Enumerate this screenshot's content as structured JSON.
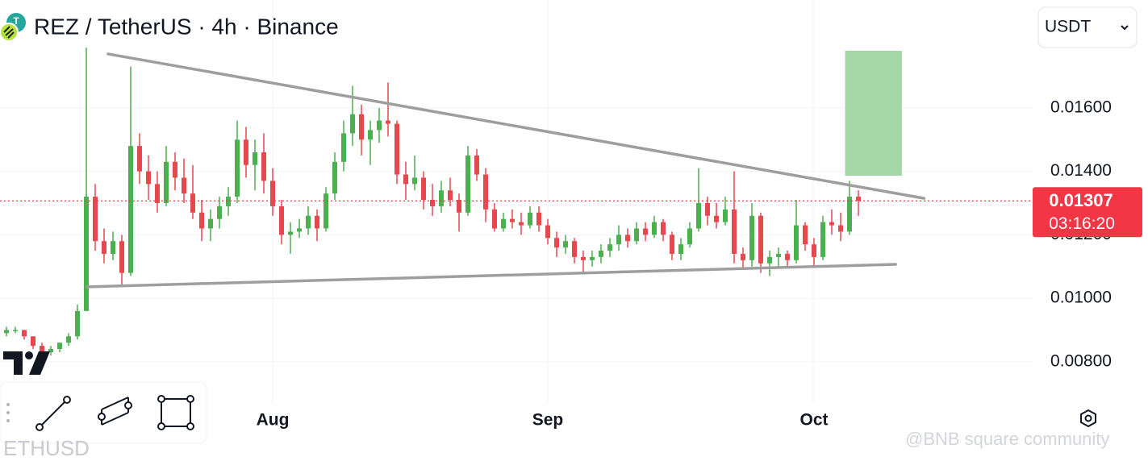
{
  "chart_data": {
    "type": "candlestick",
    "title": "REZ / TetherUS · 4h · Binance",
    "currency": "USDT",
    "overlay_symbol": "ETHUSD",
    "watermark": "@BNB square community",
    "categories": [
      null,
      null,
      null,
      null,
      null,
      null,
      null,
      null,
      null,
      null,
      null,
      null,
      null,
      null,
      null,
      null,
      null,
      null,
      null,
      null,
      null,
      null,
      null,
      null,
      null,
      null,
      null,
      null,
      null,
      null,
      "Aug",
      null,
      null,
      null,
      null,
      null,
      null,
      null,
      null,
      null,
      null,
      null,
      null,
      null,
      null,
      null,
      null,
      null,
      null,
      null,
      null,
      null,
      null,
      null,
      null,
      null,
      null,
      null,
      null,
      null,
      null,
      "Sep",
      null,
      null,
      null,
      null,
      null,
      null,
      null,
      null,
      null,
      null,
      null,
      null,
      null,
      null,
      null,
      null,
      null,
      null,
      null,
      null,
      null,
      null,
      null,
      null,
      null,
      null,
      null,
      null,
      null,
      "Oct",
      null,
      null,
      null,
      null,
      null
    ],
    "open": [
      0.0089,
      0.009,
      0.009,
      0.0088,
      0.0085,
      0.0083,
      0.0084,
      0.0086,
      0.0088,
      0.0096,
      0.0132,
      0.0118,
      0.0114,
      0.0118,
      0.0108,
      0.0148,
      0.014,
      0.0136,
      0.013,
      0.0143,
      0.0138,
      0.0133,
      0.0127,
      0.0122,
      0.0125,
      0.0129,
      0.0132,
      0.015,
      0.0142,
      0.0146,
      0.0137,
      0.0129,
      0.012,
      0.0121,
      0.0122,
      0.0126,
      0.0122,
      0.0133,
      0.0143,
      0.0152,
      0.0158,
      0.015,
      0.0153,
      0.0156,
      0.0155,
      0.0139,
      0.0136,
      0.0138,
      0.0131,
      0.0129,
      0.0134,
      0.0131,
      0.0127,
      0.0145,
      0.0139,
      0.0128,
      0.0122,
      0.0125,
      0.0124,
      0.0123,
      0.0127,
      0.0123,
      0.0119,
      0.0116,
      0.0118,
      0.0113,
      0.0112,
      0.0113,
      0.0115,
      0.0117,
      0.012,
      0.0118,
      0.0122,
      0.012,
      0.0124,
      0.012,
      0.0114,
      0.0117,
      0.0122,
      0.013,
      0.0126,
      0.0124,
      0.0128,
      0.0114,
      0.0112,
      0.0126,
      0.0111,
      0.0113,
      0.0114,
      0.0112,
      0.0123,
      0.0117,
      0.0113,
      0.0124,
      0.0123,
      0.0121,
      0.0132
    ],
    "high": [
      0.0091,
      0.0091,
      0.009,
      0.0088,
      0.0086,
      0.0085,
      0.0086,
      0.0089,
      0.0098,
      0.0179,
      0.0136,
      0.0122,
      0.0121,
      0.012,
      0.0173,
      0.0152,
      0.0145,
      0.014,
      0.0148,
      0.0146,
      0.0144,
      0.0142,
      0.0131,
      0.0128,
      0.0132,
      0.0135,
      0.0156,
      0.0154,
      0.015,
      0.0152,
      0.0141,
      0.0131,
      0.0124,
      0.0125,
      0.0129,
      0.0128,
      0.0135,
      0.0146,
      0.0156,
      0.0167,
      0.0161,
      0.0156,
      0.016,
      0.0168,
      0.0156,
      0.0143,
      0.0145,
      0.014,
      0.0136,
      0.0137,
      0.0138,
      0.0133,
      0.0148,
      0.0147,
      0.0141,
      0.013,
      0.0127,
      0.0128,
      0.0127,
      0.0129,
      0.0129,
      0.0125,
      0.0121,
      0.012,
      0.0119,
      0.0115,
      0.0115,
      0.0117,
      0.0119,
      0.0123,
      0.0122,
      0.0124,
      0.0124,
      0.0126,
      0.0125,
      0.0121,
      0.0119,
      0.0124,
      0.0141,
      0.0132,
      0.013,
      0.0132,
      0.014,
      0.0116,
      0.013,
      0.0127,
      0.0115,
      0.0116,
      0.0115,
      0.0131,
      0.0124,
      0.0119,
      0.0126,
      0.0128,
      0.0127,
      0.0137,
      0.0134
    ],
    "low": [
      0.0088,
      0.0089,
      0.0087,
      0.0084,
      0.0083,
      0.0082,
      0.0083,
      0.0085,
      0.0087,
      0.0096,
      0.0115,
      0.0111,
      0.0112,
      0.0104,
      0.0107,
      0.0136,
      0.0131,
      0.0127,
      0.0129,
      0.0134,
      0.013,
      0.0125,
      0.0118,
      0.0118,
      0.0122,
      0.0126,
      0.013,
      0.0138,
      0.0134,
      0.0133,
      0.0126,
      0.0117,
      0.0114,
      0.0119,
      0.012,
      0.0118,
      0.0121,
      0.0131,
      0.014,
      0.0148,
      0.0145,
      0.0142,
      0.0149,
      0.0151,
      0.0136,
      0.0131,
      0.0134,
      0.0128,
      0.0126,
      0.0127,
      0.0129,
      0.0121,
      0.0126,
      0.0137,
      0.0124,
      0.0121,
      0.0121,
      0.0122,
      0.012,
      0.0122,
      0.0121,
      0.0117,
      0.0113,
      0.0114,
      0.0111,
      0.0108,
      0.011,
      0.0111,
      0.0113,
      0.0115,
      0.0116,
      0.0117,
      0.0118,
      0.0119,
      0.0118,
      0.0112,
      0.0112,
      0.0116,
      0.0121,
      0.0123,
      0.0122,
      0.0123,
      0.0111,
      0.0109,
      0.011,
      0.0108,
      0.0107,
      0.011,
      0.011,
      0.0111,
      0.0115,
      0.011,
      0.0112,
      0.012,
      0.0118,
      0.012,
      0.0126
    ],
    "close": [
      0.009,
      0.009,
      0.0088,
      0.0085,
      0.0083,
      0.0084,
      0.0086,
      0.0088,
      0.0096,
      0.0132,
      0.0118,
      0.0114,
      0.0118,
      0.0108,
      0.0148,
      0.014,
      0.0136,
      0.013,
      0.0143,
      0.0138,
      0.0133,
      0.0127,
      0.0122,
      0.0125,
      0.0129,
      0.0132,
      0.015,
      0.0142,
      0.0146,
      0.0137,
      0.0129,
      0.012,
      0.0121,
      0.0122,
      0.0126,
      0.0122,
      0.0133,
      0.0143,
      0.0152,
      0.0158,
      0.015,
      0.0153,
      0.0156,
      0.0155,
      0.0139,
      0.0136,
      0.0138,
      0.0131,
      0.0129,
      0.0134,
      0.0131,
      0.0127,
      0.0145,
      0.0139,
      0.0128,
      0.0122,
      0.0125,
      0.0124,
      0.0123,
      0.0127,
      0.0123,
      0.0119,
      0.0116,
      0.0118,
      0.0113,
      0.0112,
      0.0113,
      0.0115,
      0.0117,
      0.012,
      0.0118,
      0.0122,
      0.012,
      0.0124,
      0.012,
      0.0114,
      0.0117,
      0.0122,
      0.013,
      0.0126,
      0.0124,
      0.0128,
      0.0114,
      0.0112,
      0.0126,
      0.0111,
      0.0113,
      0.0114,
      0.0112,
      0.0123,
      0.0117,
      0.0113,
      0.0124,
      0.0123,
      0.0121,
      0.0132,
      0.01307
    ],
    "up_color": "#4caf50",
    "down_color": "#e5484d",
    "ylim": [
      0.0067,
      0.0194
    ],
    "yticks": [
      {
        "value": 0.008,
        "label": "0.00800"
      },
      {
        "value": 0.01,
        "label": "0.01000"
      },
      {
        "value": 0.012,
        "label": "0.01200"
      },
      {
        "value": 0.014,
        "label": "0.01400"
      },
      {
        "value": 0.016,
        "label": "0.01600"
      }
    ],
    "grid": true,
    "last_price": 0.01307,
    "countdown": "03:16:20",
    "price_tag_color": "#f23645",
    "trendlines": [
      {
        "x": [
          11.45,
          103.4
        ],
        "y": [
          0.0177,
          0.01315
        ]
      },
      {
        "x": [
          9.1,
          100.2
        ],
        "y": [
          0.01036,
          0.01107
        ]
      }
    ],
    "trendline_color": "#9e9e9e",
    "target_zone": {
      "x": [
        94.5,
        100.9
      ],
      "y": [
        0.01386,
        0.0178
      ],
      "color": "#a5d6a7"
    }
  }
}
